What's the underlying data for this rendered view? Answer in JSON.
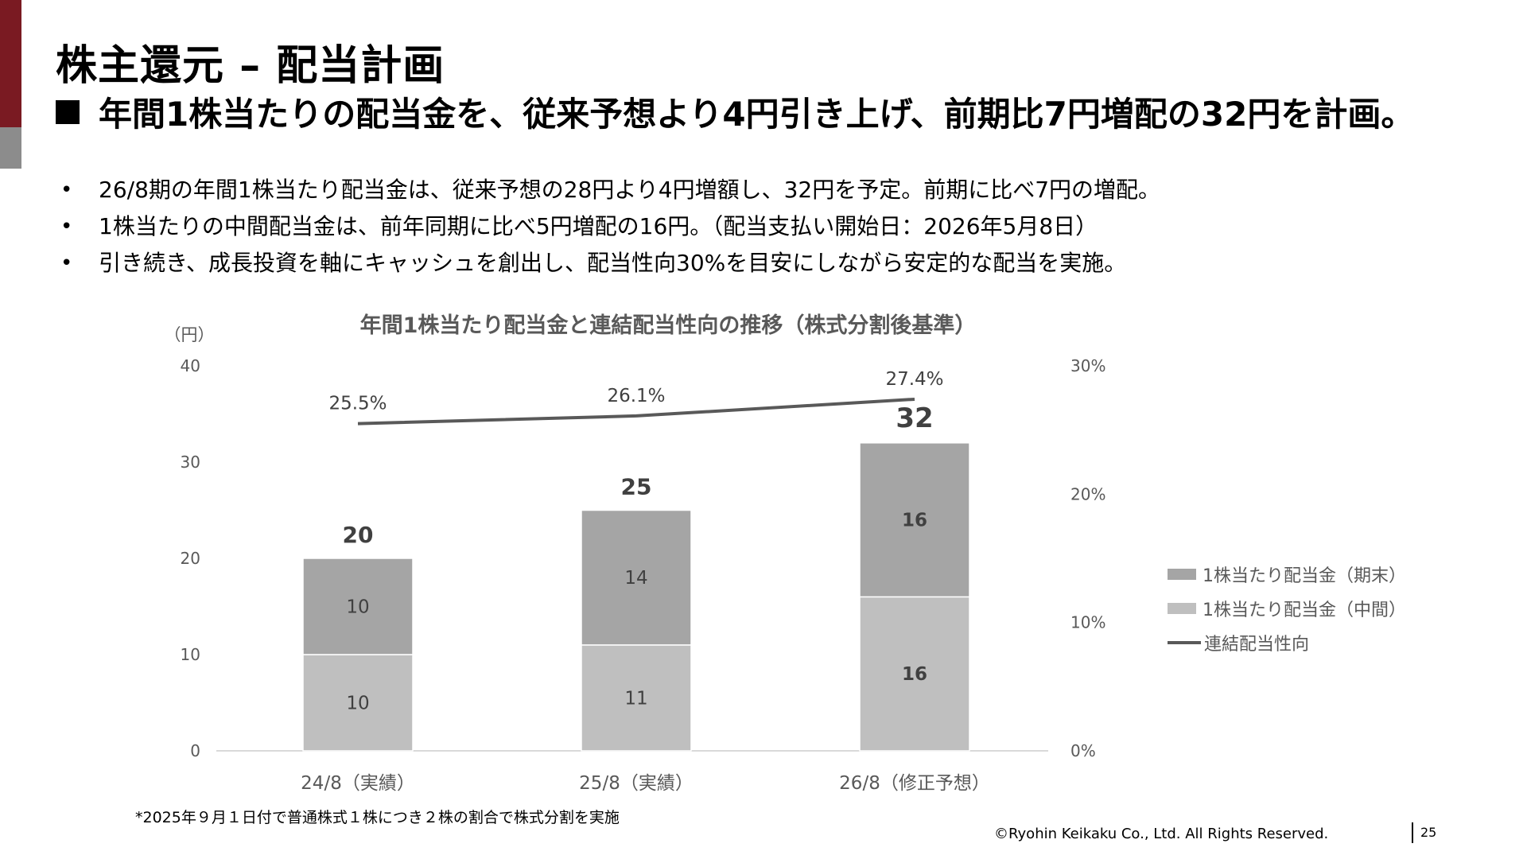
{
  "header": {
    "title": "株主還元 – 配当計画",
    "subtitle": "年間1株当たりの配当金を、従来予想より4円引き上げ、前期比7円増配の32円を計画。"
  },
  "bullets": [
    "26/8期の年間1株当たり配当金は、従来予想の28円より4円増額し、32円を予定。前期に比べ7円の増配。",
    "1株当たりの中間配当金は、前年同期に比べ5円増配の16円。（配当支払い開始日：2026年5月8日）",
    "引き続き、成長投資を軸にキャッシュを創出し、配当性向30%を目安にしながら安定的な配当を実施。"
  ],
  "bullet_symbol": "•",
  "chart_data": {
    "type": "bar",
    "stacked": true,
    "title": "年間1株当たり配当金と連結配当性向の推移（株式分割後基準）",
    "y_unit_label": "（円）",
    "categories": [
      "24/8（実績）",
      "25/8（実績）",
      "26/8（修正予想）"
    ],
    "series": [
      {
        "name": "1株当たり配当金（中間）",
        "values": [
          10,
          11,
          16
        ],
        "color": "#bfbfbf"
      },
      {
        "name": "1株当たり配当金（期末）",
        "values": [
          10,
          14,
          16
        ],
        "color": "#a5a5a5"
      }
    ],
    "totals": [
      20,
      25,
      32
    ],
    "line_series": {
      "name": "連結配当性向",
      "values": [
        25.5,
        26.1,
        27.4
      ],
      "labels": [
        "25.5%",
        "26.1%",
        "27.4%"
      ],
      "color": "#595959"
    },
    "ylim": [
      0,
      40
    ],
    "yticks": [
      "0",
      "10",
      "20",
      "30",
      "40"
    ],
    "y2lim": [
      0,
      30
    ],
    "y2ticks": [
      "0%",
      "10%",
      "20%",
      "30%"
    ],
    "legend_position": "right",
    "grid": false
  },
  "footnote": "*2025年９月１日付で普通株式１株につき２株の割合で株式分割を実施",
  "copyright": "©Ryohin Keikaku Co., Ltd. All Rights Reserved.",
  "page_number": "25"
}
